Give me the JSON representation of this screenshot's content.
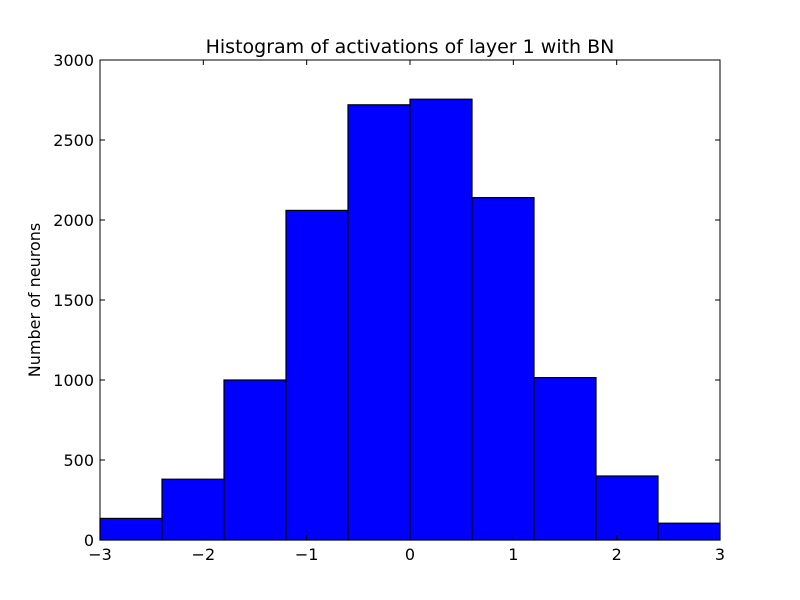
{
  "chart_data": {
    "type": "bar",
    "title": "Histogram of activations of layer 1  with BN",
    "xlabel": "",
    "ylabel": "Number of neurons",
    "bin_edges": [
      -3,
      -2.4,
      -1.8,
      -1.2,
      -0.6,
      0,
      0.6,
      1.2,
      1.8,
      2.4,
      3
    ],
    "values": [
      135,
      380,
      1000,
      2060,
      2720,
      2755,
      2140,
      1015,
      400,
      105
    ],
    "xlim": [
      -3,
      3
    ],
    "ylim": [
      0,
      3000
    ],
    "x_ticks": [
      -3,
      -2,
      -1,
      0,
      1,
      2,
      3
    ],
    "x_tick_labels": [
      "−3",
      "−2",
      "−1",
      "0",
      "1",
      "2",
      "3"
    ],
    "y_ticks": [
      0,
      500,
      1000,
      1500,
      2000,
      2500,
      3000
    ],
    "y_tick_labels": [
      "0",
      "500",
      "1000",
      "1500",
      "2000",
      "2500",
      "3000"
    ],
    "grid": false,
    "legend": "none",
    "bar_color": "#0000ff",
    "edge_color": "#000000"
  }
}
